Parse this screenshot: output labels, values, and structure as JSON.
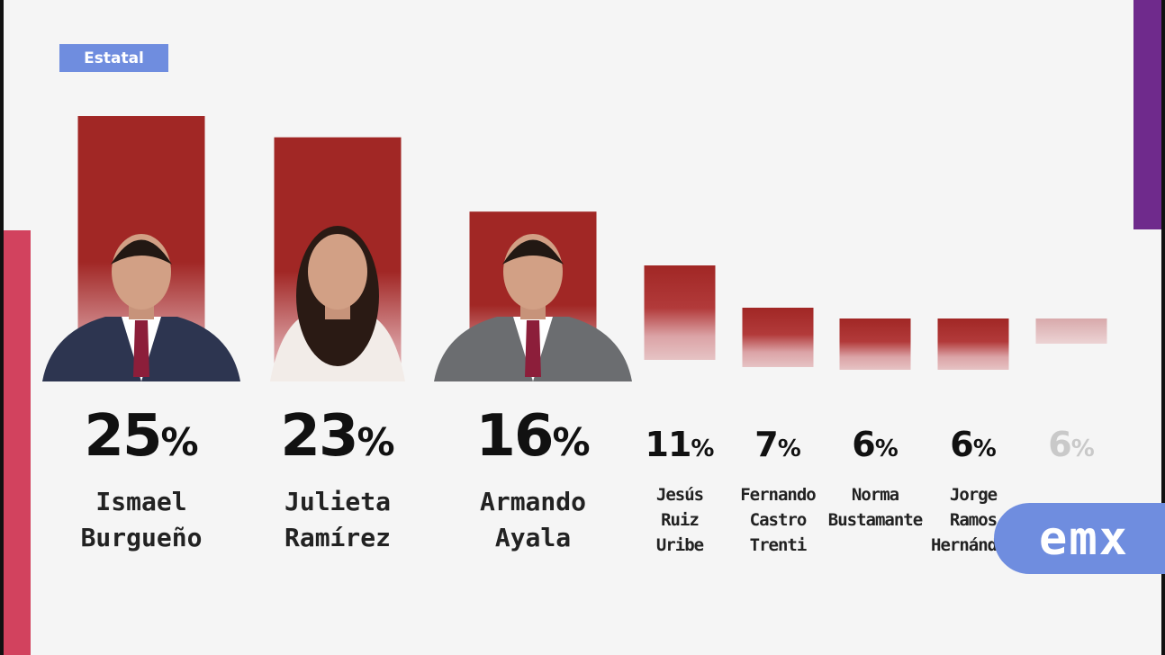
{
  "badge": "Estatal",
  "logo": "emx",
  "colors": {
    "bar": "#a12725",
    "bar_fade": "#dba3a6",
    "badge": "#6f8ddf",
    "accent_pink": "#d2425e",
    "accent_purple": "#6f2a8c"
  },
  "chart_data": {
    "type": "bar",
    "categories": [
      "Ismael Burgueño",
      "Julieta Ramírez",
      "Armando Ayala",
      "Jesús Ruiz Uribe",
      "Fernando Castro Trenti",
      "Norma Bustamante",
      "Jorge Ramos Hernández",
      ""
    ],
    "values": [
      25,
      23,
      16,
      11,
      7,
      6,
      6,
      6
    ],
    "value_labels": [
      "25",
      "23",
      "16",
      "11",
      "7",
      "6",
      "6",
      "6"
    ],
    "unit": "%",
    "name_lines": [
      [
        "Ismael",
        "Burgueño"
      ],
      [
        "Julieta",
        "Ramírez"
      ],
      [
        "Armando",
        "Ayala"
      ],
      [
        "Jesús",
        "Ruiz",
        "Uribe"
      ],
      [
        "Fernando",
        "Castro",
        "Trenti"
      ],
      [
        "Norma",
        "Bustamante"
      ],
      [
        "Jorge",
        "Ramos",
        "Hernández"
      ],
      []
    ],
    "photos": [
      "person-photo",
      "person-photo",
      "person-photo"
    ]
  }
}
